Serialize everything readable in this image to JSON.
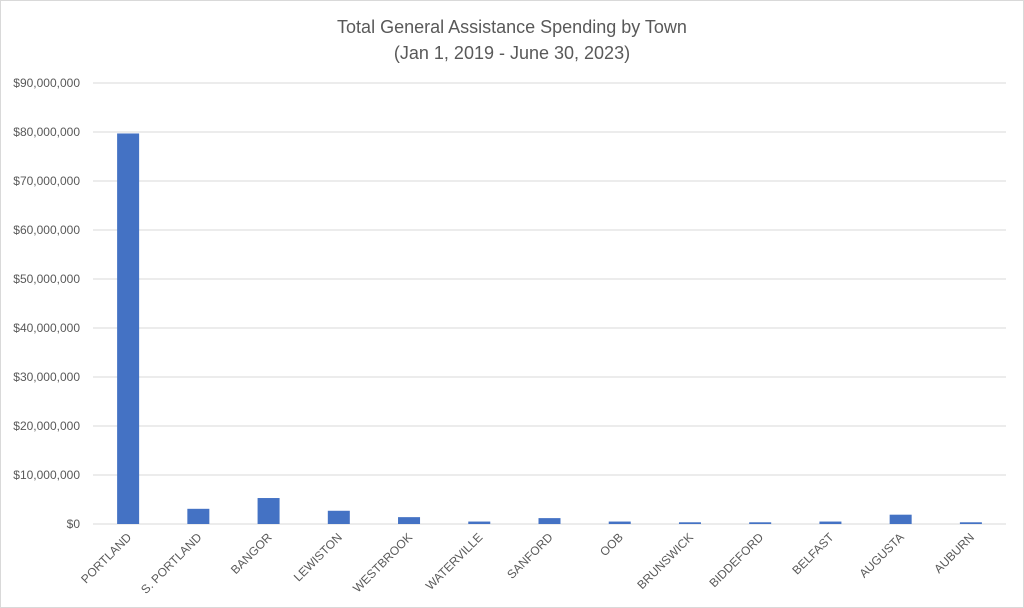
{
  "chart_data": {
    "type": "bar",
    "title": "Total General Assistance Spending by Town",
    "subtitle": "(Jan 1, 2019 - June 30, 2023)",
    "xlabel": "",
    "ylabel": "",
    "ylim": [
      0,
      90000000
    ],
    "yticks": [
      0,
      10000000,
      20000000,
      30000000,
      40000000,
      50000000,
      60000000,
      70000000,
      80000000,
      90000000
    ],
    "ytick_labels": [
      "$0",
      "$10,000,000",
      "$20,000,000",
      "$30,000,000",
      "$40,000,000",
      "$50,000,000",
      "$60,000,000",
      "$70,000,000",
      "$80,000,000",
      "$90,000,000"
    ],
    "categories": [
      "PORTLAND",
      "S. PORTLAND",
      "BANGOR",
      "LEWISTON",
      "WESTBROOK",
      "WATERVILLE",
      "SANFORD",
      "OOB",
      "BRUNSWICK",
      "BIDDEFORD",
      "BELFAST",
      "AUGUSTA",
      "AUBURN"
    ],
    "values": [
      79700000,
      3100000,
      5300000,
      2700000,
      1400000,
      500000,
      1200000,
      500000,
      350000,
      350000,
      500000,
      1900000,
      350000
    ],
    "grid": true,
    "legend": "none",
    "bar_color": "#4472C4"
  }
}
